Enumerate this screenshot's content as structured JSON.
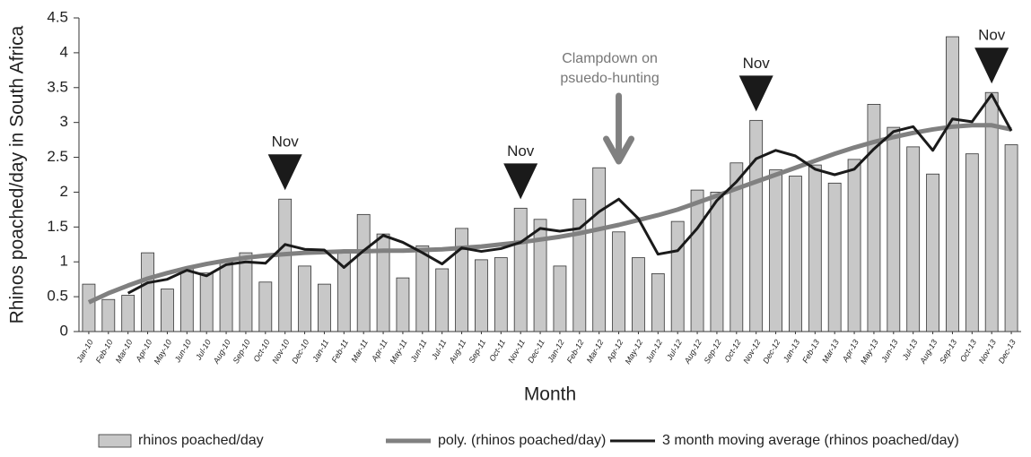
{
  "chart_data": {
    "type": "bar",
    "y_label": "Rhinos poached/day in South Africa",
    "x_label": "Month",
    "categories": [
      "Jan-10",
      "Feb-10",
      "Mar-10",
      "Apr-10",
      "May-10",
      "Jun-10",
      "Jul-10",
      "Aug-10",
      "Sep-10",
      "Oct-10",
      "Nov-10",
      "Dec-10",
      "Jan-11",
      "Feb-11",
      "Mar-11",
      "Apr-11",
      "May-11",
      "Jun-11",
      "Jul-11",
      "Aug-11",
      "Sep-11",
      "Oct-11",
      "Nov-11",
      "Dec-11",
      "Jan-12",
      "Feb-12",
      "Mar-12",
      "Apr-12",
      "May-12",
      "Jun-12",
      "Jul-12",
      "Aug-12",
      "Sep-12",
      "Oct-12",
      "Nov-12",
      "Dec-12",
      "Jan-13",
      "Feb-13",
      "Mar-13",
      "Apr-13",
      "May-13",
      "Jun-13",
      "Jul-13",
      "Aug-13",
      "Sep-13",
      "Oct-13",
      "Nov-13",
      "Dec-13"
    ],
    "series": [
      {
        "name": "rhinos poached/day",
        "kind": "bar",
        "color": "#c8c8c8",
        "values": [
          0.68,
          0.46,
          0.52,
          1.13,
          0.61,
          0.9,
          0.84,
          1.0,
          1.13,
          0.71,
          1.9,
          0.94,
          0.68,
          1.13,
          1.68,
          1.4,
          0.77,
          1.23,
          0.9,
          1.48,
          1.03,
          1.06,
          1.77,
          1.61,
          0.94,
          1.9,
          2.35,
          1.43,
          1.06,
          0.83,
          1.58,
          2.03,
          2.0,
          2.42,
          3.03,
          2.32,
          2.23,
          2.39,
          2.13,
          2.47,
          3.26,
          2.93,
          2.65,
          2.26,
          4.23,
          2.55,
          3.43,
          2.68
        ]
      },
      {
        "name": "poly. (rhinos poached/day)",
        "kind": "line",
        "color": "#808080",
        "values": [
          0.42,
          0.55,
          0.66,
          0.76,
          0.84,
          0.91,
          0.97,
          1.02,
          1.06,
          1.09,
          1.11,
          1.13,
          1.14,
          1.15,
          1.15,
          1.16,
          1.16,
          1.17,
          1.18,
          1.2,
          1.22,
          1.25,
          1.28,
          1.32,
          1.36,
          1.41,
          1.47,
          1.53,
          1.6,
          1.67,
          1.75,
          1.85,
          1.95,
          2.05,
          2.15,
          2.25,
          2.35,
          2.45,
          2.55,
          2.64,
          2.72,
          2.79,
          2.85,
          2.9,
          2.94,
          2.96,
          2.96,
          2.9
        ]
      },
      {
        "name": "3 month moving average (rhinos poached/day)",
        "kind": "line",
        "color": "#1a1a1a",
        "values": [
          null,
          null,
          0.55,
          0.7,
          0.75,
          0.88,
          0.8,
          0.96,
          1.0,
          0.98,
          1.25,
          1.18,
          1.17,
          0.92,
          1.16,
          1.38,
          1.28,
          1.13,
          0.97,
          1.2,
          1.15,
          1.19,
          1.28,
          1.48,
          1.44,
          1.48,
          1.72,
          1.9,
          1.62,
          1.11,
          1.16,
          1.48,
          1.88,
          2.15,
          2.48,
          2.6,
          2.52,
          2.33,
          2.25,
          2.33,
          2.62,
          2.87,
          2.94,
          2.6,
          3.05,
          3.01,
          3.4,
          2.88
        ]
      }
    ],
    "ylim": [
      0,
      4.5
    ],
    "yticks": [
      0,
      0.5,
      1,
      1.5,
      2,
      2.5,
      3,
      3.5,
      4,
      4.5
    ],
    "annotations": [
      {
        "text": "Nov",
        "category": "Nov-10"
      },
      {
        "text": "Nov",
        "category": "Nov-11"
      },
      {
        "text": "Nov",
        "category": "Nov-12"
      },
      {
        "text": "Nov",
        "category": "Nov-13"
      }
    ],
    "event": {
      "lines": [
        "Clampdown on",
        "psuedo-hunting"
      ],
      "category": "Apr-12"
    },
    "legend": "bottom"
  }
}
